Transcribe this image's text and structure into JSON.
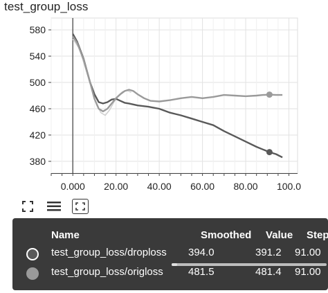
{
  "chart_title": "test_group_loss",
  "chart_data": {
    "type": "line",
    "title": "test_group_loss",
    "xlabel": "",
    "ylabel": "",
    "xlim": [
      -10,
      104
    ],
    "ylim": [
      362,
      598
    ],
    "x_ticks": [
      0,
      20,
      40,
      60,
      80,
      100
    ],
    "x_tick_labels": [
      "0.000",
      "20.00",
      "40.00",
      "60.00",
      "80.00",
      "100.0"
    ],
    "y_ticks": [
      380,
      420,
      460,
      500,
      540,
      580
    ],
    "y_tick_labels": [
      "380",
      "420",
      "460",
      "500",
      "540",
      "580"
    ],
    "grid": true,
    "series": [
      {
        "name": "test_group_loss/droploss",
        "color": "#595959",
        "x": [
          0,
          2,
          5,
          8,
          10,
          12,
          14,
          16,
          18,
          20,
          22,
          24,
          26,
          30,
          35,
          40,
          45,
          50,
          55,
          60,
          65,
          70,
          75,
          80,
          85,
          88,
          91,
          94,
          97
        ],
        "y": [
          574,
          562,
          536,
          500,
          482,
          470,
          468,
          470,
          474,
          475,
          472,
          469,
          468,
          465,
          463,
          460,
          454,
          450,
          445,
          440,
          435,
          426,
          418,
          410,
          402,
          398,
          394,
          391,
          386
        ],
        "highlight_x": 91
      },
      {
        "name": "test_group_loss/origloss",
        "color": "#9a9a9a",
        "x": [
          0,
          2,
          5,
          8,
          10,
          12,
          14,
          16,
          18,
          20,
          22,
          24,
          26,
          28,
          30,
          33,
          36,
          40,
          45,
          50,
          55,
          60,
          65,
          70,
          75,
          80,
          85,
          88,
          91,
          94,
          97
        ],
        "y": [
          570,
          560,
          535,
          500,
          475,
          460,
          456,
          460,
          468,
          476,
          482,
          487,
          489,
          487,
          482,
          476,
          472,
          471,
          473,
          476,
          478,
          476,
          478,
          481,
          480,
          479,
          480,
          481,
          481.5,
          481,
          481
        ],
        "highlight_x": 91
      }
    ],
    "raw_series": [
      {
        "name": "test_group_loss/origloss",
        "color": "#d0d0d0",
        "x": [
          0,
          3,
          6,
          9,
          11,
          13,
          15,
          17,
          19,
          21,
          23,
          25,
          27
        ],
        "y": [
          566,
          552,
          520,
          488,
          466,
          454,
          450,
          458,
          470,
          480,
          486,
          488,
          485
        ]
      }
    ]
  },
  "toolbar": {
    "icons": [
      "fullscreen-icon",
      "legend-lines-icon",
      "fit-domain-icon"
    ]
  },
  "tooltip": {
    "headers": {
      "name": "Name",
      "smoothed": "Smoothed",
      "value": "Value",
      "step": "Step"
    },
    "rows": [
      {
        "name": "test_group_loss/droploss",
        "smoothed": "394.0",
        "value": "391.2",
        "step": "91.00",
        "dot_color": "#595959"
      },
      {
        "name": "test_group_loss/origloss",
        "smoothed": "481.5",
        "value": "481.4",
        "step": "91.00",
        "dot_color": "#9a9a9a"
      }
    ]
  }
}
